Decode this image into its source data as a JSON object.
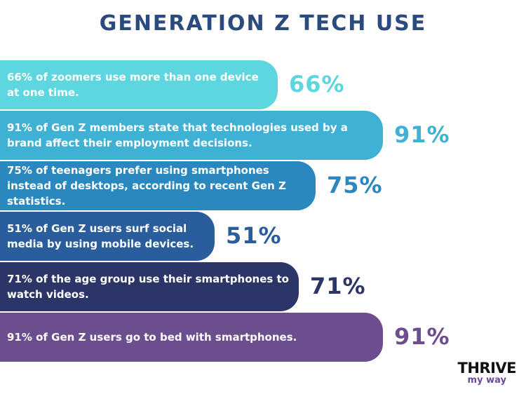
{
  "header": {
    "title": "GENERATION Z TECH USE"
  },
  "chart_data": {
    "type": "bar",
    "orientation": "horizontal",
    "title": "GENERATION Z TECH USE",
    "categories": [
      "66% of zoomers use more than one device at one time.",
      "91% of Gen Z members state that technologies used by a brand affect their employment decisions.",
      "75% of teenagers prefer using smartphones instead of desktops, according to recent Gen Z statistics.",
      "51% of Gen Z users surf social media by using mobile devices.",
      "71% of the age group use their smartphones to watch videos.",
      "91% of Gen Z users go to bed with smartphones."
    ],
    "values": [
      66,
      91,
      75,
      51,
      71,
      91
    ],
    "value_labels": [
      "66%",
      "91%",
      "75%",
      "51%",
      "71%",
      "91%"
    ],
    "colors": [
      "#5dd6df",
      "#3fb1d4",
      "#2a88be",
      "#2a5d9c",
      "#2c3568",
      "#6c4d8e"
    ],
    "value_label_colors": [
      "#5dd6df",
      "#3fb1d4",
      "#2a88be",
      "#2a5d9c",
      "#2c3568",
      "#6c4d8e"
    ],
    "xlim": [
      0,
      100
    ]
  },
  "logo": {
    "top": "THRIVE",
    "bottom": "my way"
  }
}
